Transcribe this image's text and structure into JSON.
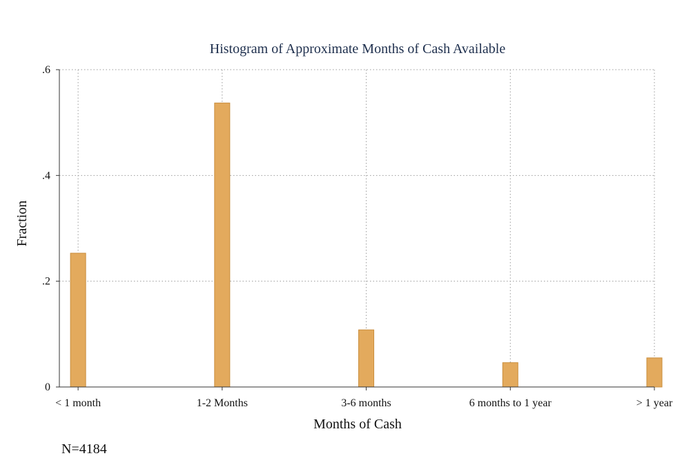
{
  "chart_data": {
    "type": "bar",
    "title": "Histogram of Approximate Months of Cash Available",
    "xlabel": "Months of Cash",
    "ylabel": "Fraction",
    "categories": [
      "< 1 month",
      "1-2 Months",
      "3-6 months",
      "6 months to 1 year",
      "> 1 year"
    ],
    "x_positions": [
      1,
      2,
      3,
      4,
      5
    ],
    "values": [
      0.253,
      0.537,
      0.108,
      0.046,
      0.055
    ],
    "ylim": [
      0,
      0.6
    ],
    "xlim": [
      0.87,
      5.0
    ],
    "yticks": [
      0,
      0.2,
      0.4,
      0.6
    ],
    "ytick_labels": [
      "0",
      ".2",
      ".4",
      ".6"
    ],
    "grid": true,
    "bar_color": "#e3aa5d",
    "bar_edge_color": "#c98d3c"
  },
  "note": "N=4184"
}
